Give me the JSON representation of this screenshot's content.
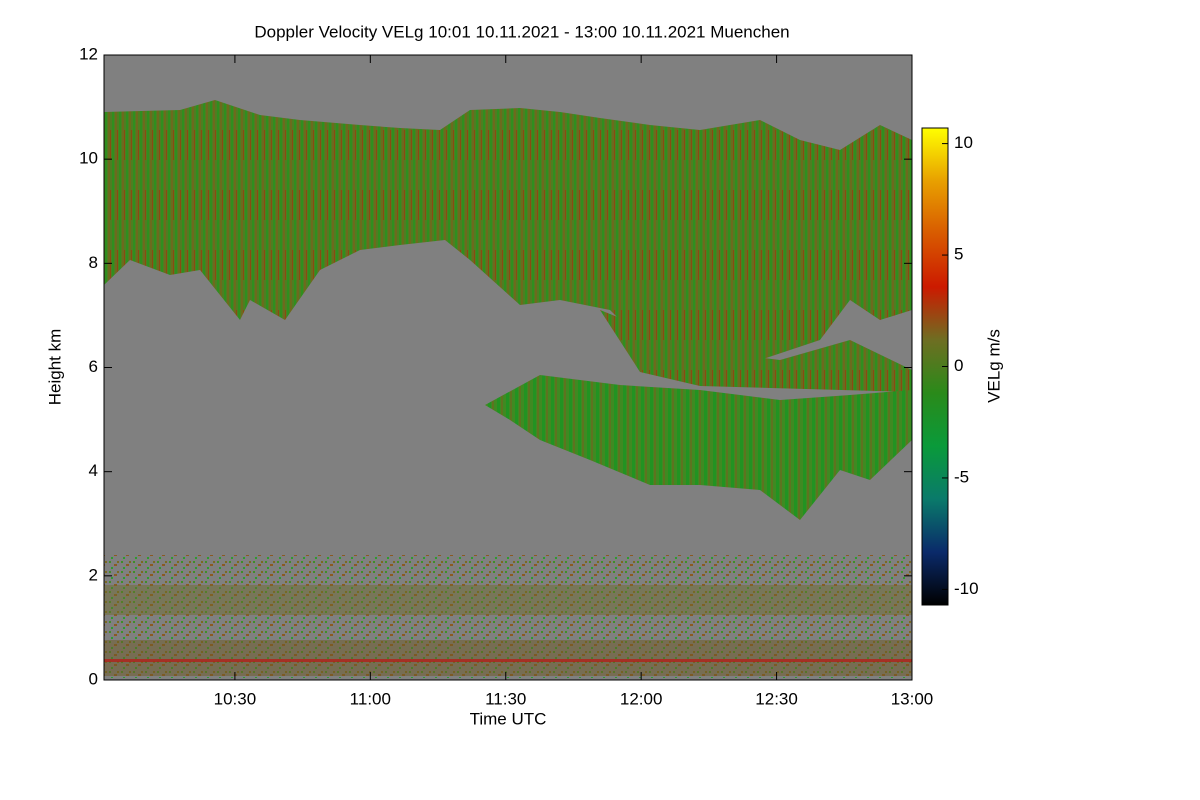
{
  "chart_data": {
    "type": "heatmap",
    "title": "Doppler Velocity VELg   10:01 10.11.2021 - 13:00 10.11.2021 Muenchen",
    "x_label": "Time UTC",
    "y_label": "Height km",
    "xlim": [
      601,
      780
    ],
    "xticks": [
      {
        "value": 630,
        "label": "10:30"
      },
      {
        "value": 660,
        "label": "11:00"
      },
      {
        "value": 690,
        "label": "11:30"
      },
      {
        "value": 720,
        "label": "12:00"
      },
      {
        "value": 750,
        "label": "12:30"
      },
      {
        "value": 780,
        "label": "13:00"
      }
    ],
    "ylim": [
      0,
      12
    ],
    "yticks": [
      0,
      2,
      4,
      6,
      8,
      10,
      12
    ],
    "background_color": "#808080",
    "colorbar": {
      "label": "VELg m/s",
      "lim": [
        -10.7,
        10.7
      ],
      "ticks": [
        -10,
        -5,
        0,
        5,
        10
      ],
      "colors": [
        "#000000",
        "#0a2a6a",
        "#0a7a6a",
        "#0a9a3a",
        "#2a8a1a",
        "#6e6e22",
        "#cc1a00",
        "#d85a00",
        "#e8a000",
        "#ffff00"
      ]
    }
  }
}
